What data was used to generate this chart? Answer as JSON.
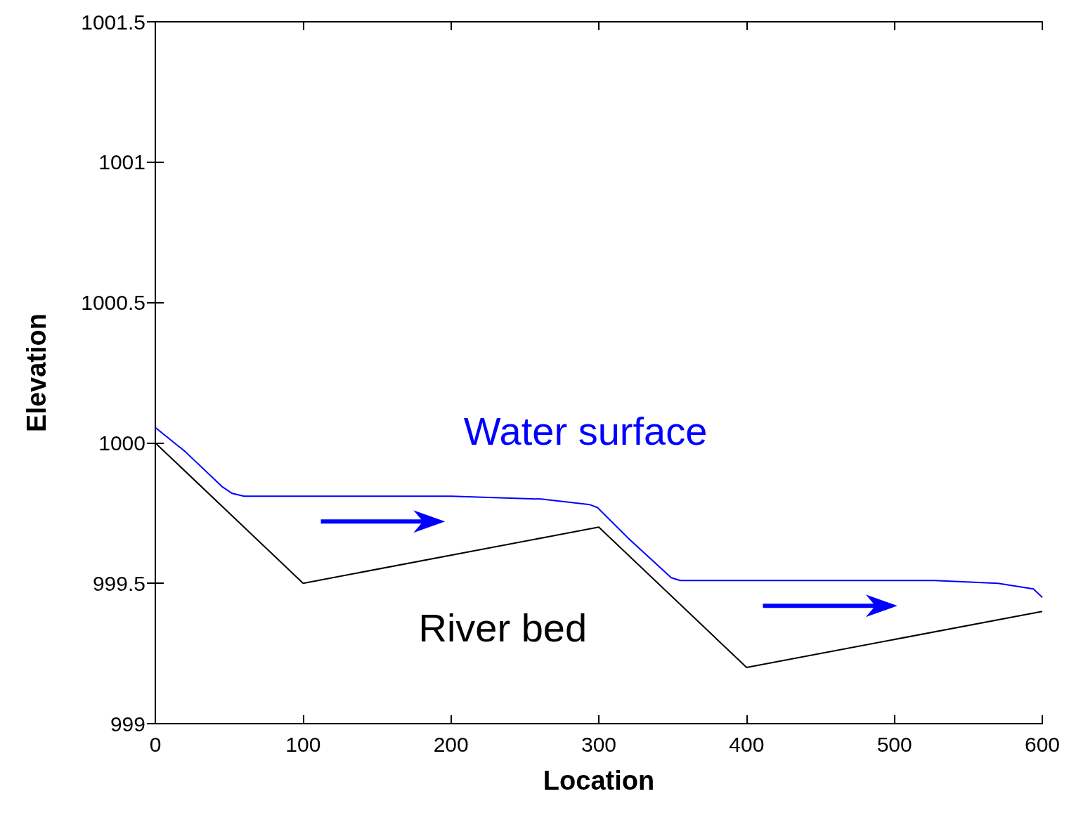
{
  "chart_data": {
    "type": "line",
    "xlabel": "Location",
    "ylabel": "Elevation",
    "xlim": [
      0,
      600
    ],
    "xticks": [
      0,
      100,
      200,
      300,
      400,
      500,
      600
    ],
    "ylim": [
      999,
      1001.5
    ],
    "yticks": [
      999,
      999.5,
      1000,
      1000.5,
      1001,
      1001.5
    ],
    "grid": false,
    "marker": "none",
    "line_style": "solid",
    "series": [
      {
        "name": "Water surface",
        "color": "#0000ff",
        "x": [
          0,
          20,
          45,
          52,
          60,
          100,
          200,
          261,
          294,
          299,
          320,
          349,
          355,
          400,
          500,
          527,
          570,
          594,
          600
        ],
        "values": [
          1000.055,
          999.97,
          999.845,
          999.82,
          999.81,
          999.81,
          999.81,
          999.8,
          999.78,
          999.77,
          999.66,
          999.52,
          999.51,
          999.51,
          999.51,
          999.51,
          999.5,
          999.48,
          999.45
        ]
      },
      {
        "name": "River bed",
        "color": "#000000",
        "x": [
          0,
          100,
          300,
          400,
          600
        ],
        "values": [
          1000,
          999.5,
          999.7,
          999.2,
          999.4
        ]
      }
    ]
  }
}
